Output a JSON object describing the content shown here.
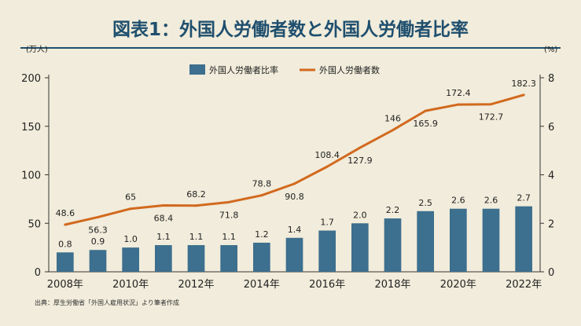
{
  "title": "図表1：外国人労働者数と外国人労働者比率",
  "source": "出典：厚生労働省「外国人雇用状況」より筆者作成",
  "chart_data": {
    "type": "bar+line",
    "categories": [
      "2008",
      "2009",
      "2010",
      "2011",
      "2012",
      "2013",
      "2014",
      "2015",
      "2016",
      "2017",
      "2018",
      "2019",
      "2020",
      "2021",
      "2022"
    ],
    "x_tick_labels": [
      "2008年",
      "2010年",
      "2012年",
      "2014年",
      "2016年",
      "2018年",
      "2020年",
      "2022年"
    ],
    "series": [
      {
        "name": "外国人労働者比率",
        "type": "bar",
        "axis": "right",
        "color": "#3d6f8e",
        "values": [
          0.8,
          0.9,
          1.0,
          1.1,
          1.1,
          1.1,
          1.2,
          1.4,
          1.7,
          2.0,
          2.2,
          2.5,
          2.6,
          2.6,
          2.7
        ],
        "labels": [
          "0.8",
          "0.9",
          "1.0",
          "1.1",
          "1.1",
          "1.1",
          "1.2",
          "1.4",
          "1.7",
          "2.0",
          "2.2",
          "2.5",
          "2.6",
          "2.6",
          "2.7"
        ]
      },
      {
        "name": "外国人労働者数",
        "type": "line",
        "axis": "left",
        "color": "#d2691e",
        "values": [
          48.6,
          56.3,
          65,
          68.4,
          68.2,
          71.8,
          78.8,
          90.8,
          108.4,
          127.9,
          146,
          165.9,
          172.4,
          172.7,
          182.3
        ],
        "labels": [
          "48.6",
          "56.3",
          "65",
          "68.4",
          "68.2",
          "71.8",
          "78.8",
          "90.8",
          "108.4",
          "127.9",
          "146",
          "165.9",
          "172.4",
          "172.7",
          "182.3"
        ]
      }
    ],
    "left_axis": {
      "unit": "(万人)",
      "ylim": [
        0,
        200
      ],
      "ticks": [
        "0",
        "50",
        "100",
        "150",
        "200"
      ]
    },
    "right_axis": {
      "unit": "(%)",
      "ylim": [
        0,
        8
      ],
      "ticks": [
        "0",
        "2",
        "4",
        "6",
        "8"
      ]
    },
    "legend_position": "top-center",
    "grid": false
  }
}
